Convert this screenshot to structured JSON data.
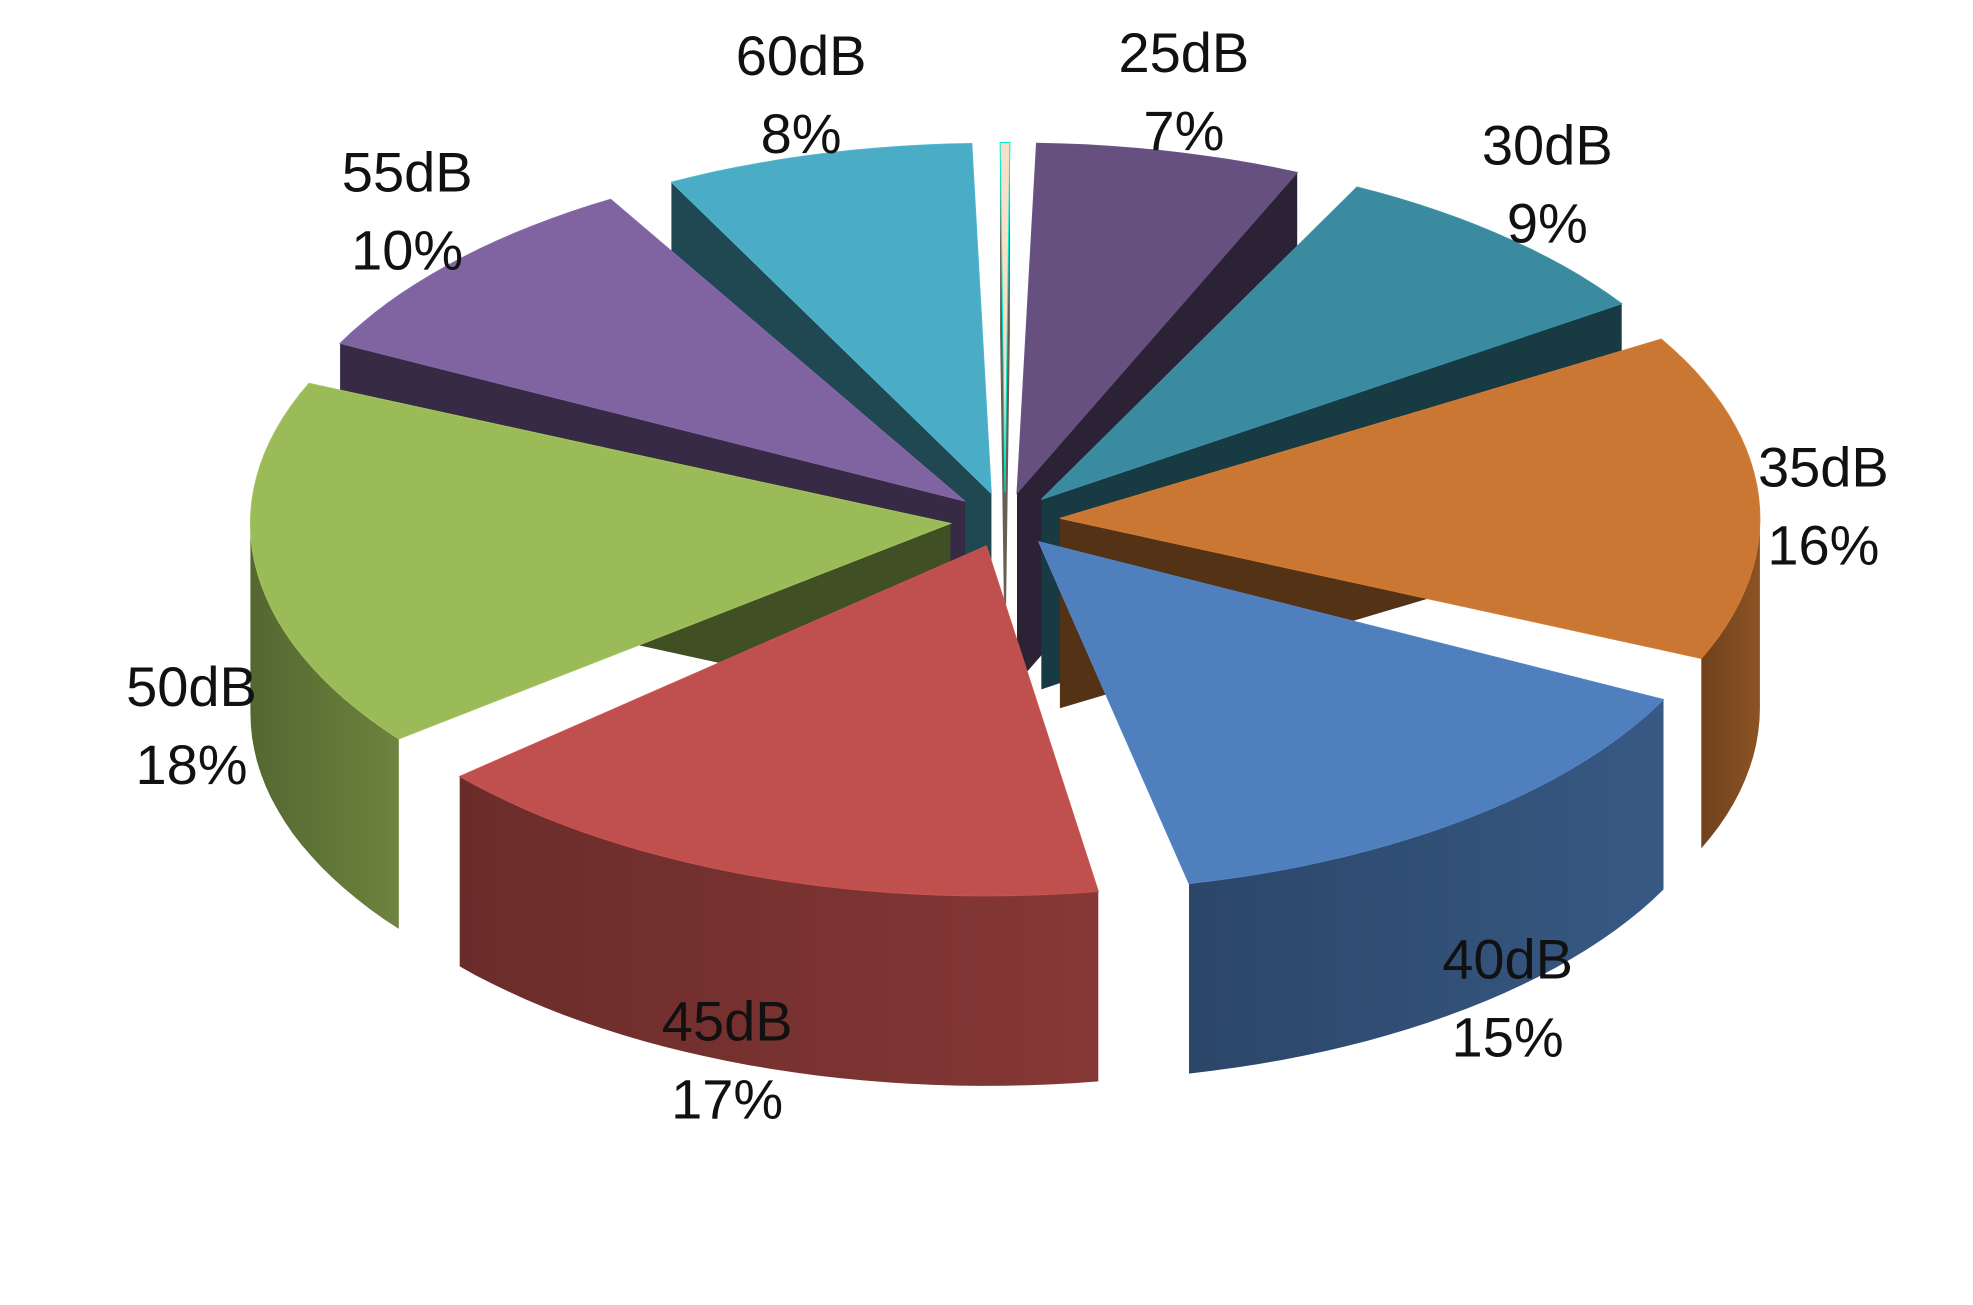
{
  "chart_data": {
    "type": "pie",
    "style": "3d-exploded",
    "title": "",
    "categories": [
      "25dB",
      "30dB",
      "35dB",
      "40dB",
      "45dB",
      "50dB",
      "55dB",
      "60dB",
      ""
    ],
    "values": [
      7,
      9,
      16,
      15,
      17,
      18,
      10,
      8,
      0
    ],
    "value_labels": [
      "7%",
      "9%",
      "16%",
      "15%",
      "17%",
      "18%",
      "10%",
      "8%",
      ""
    ],
    "colors": [
      "#66507f",
      "#3a8ba0",
      "#c97733",
      "#4f7fbd",
      "#c0504d",
      "#9bbb59",
      "#8064a2",
      "#4bacc6",
      "#f4e1c8"
    ],
    "legend": "none"
  }
}
